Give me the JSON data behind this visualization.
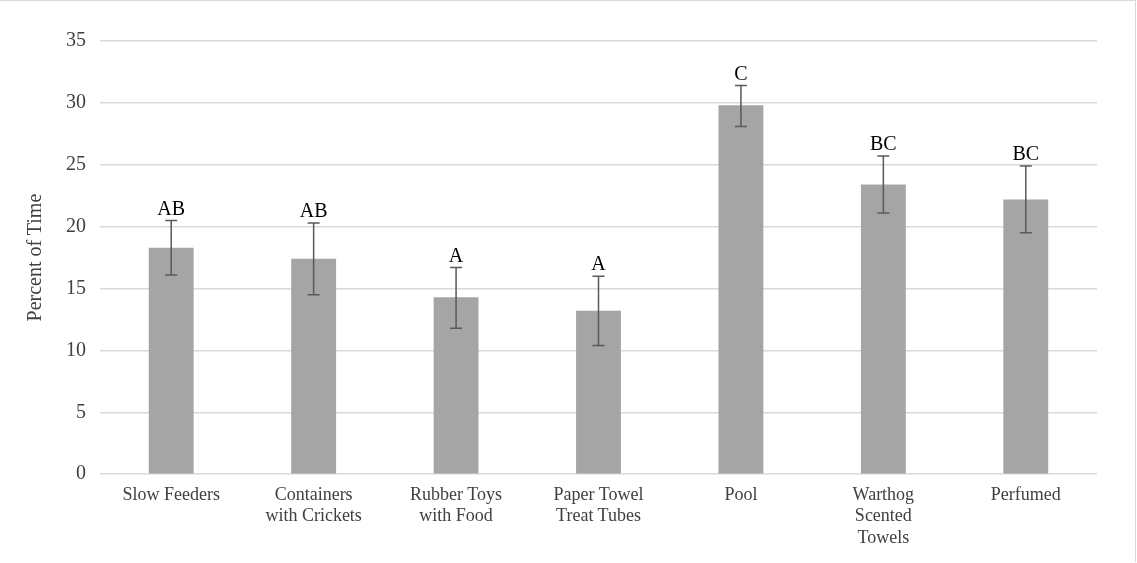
{
  "chart_data": {
    "type": "bar",
    "ylabel": "Percent of Time",
    "categories": [
      "Slow Feeders",
      "Containers with Crickets",
      "Rubber Toys with Food",
      "Paper Towel Treat Tubes",
      "Pool",
      "Warthog Scented Towels",
      "Perfumed"
    ],
    "values": [
      18.3,
      17.4,
      14.3,
      13.2,
      29.8,
      23.4,
      22.2
    ],
    "errors": [
      [
        16.1,
        20.5
      ],
      [
        14.5,
        20.3
      ],
      [
        11.8,
        16.7
      ],
      [
        10.4,
        16.0
      ],
      [
        28.1,
        31.4
      ],
      [
        21.1,
        25.7
      ],
      [
        19.5,
        24.9
      ]
    ],
    "color": "#a5a5a5",
    "ylim": [
      0,
      35
    ],
    "yticks": [
      0,
      5,
      10,
      15,
      20,
      25,
      30,
      35
    ],
    "grid": "y",
    "legend": false,
    "annotations": [
      {
        "text": "AB",
        "x": "Slow Feeders",
        "y": 20.5
      },
      {
        "text": "AB",
        "x": "Containers with Crickets",
        "y": 20.3
      },
      {
        "text": "A",
        "x": "Rubber Toys with Food",
        "y": 16.7
      },
      {
        "text": "A",
        "x": "Paper Towel Treat Tubes",
        "y": 16.0
      },
      {
        "text": "C",
        "x": "Pool",
        "y": 31.4
      },
      {
        "text": "BC",
        "x": "Warthog Scented Towels",
        "y": 25.7
      },
      {
        "text": "BC",
        "x": "Perfumed",
        "y": 24.9
      }
    ]
  }
}
